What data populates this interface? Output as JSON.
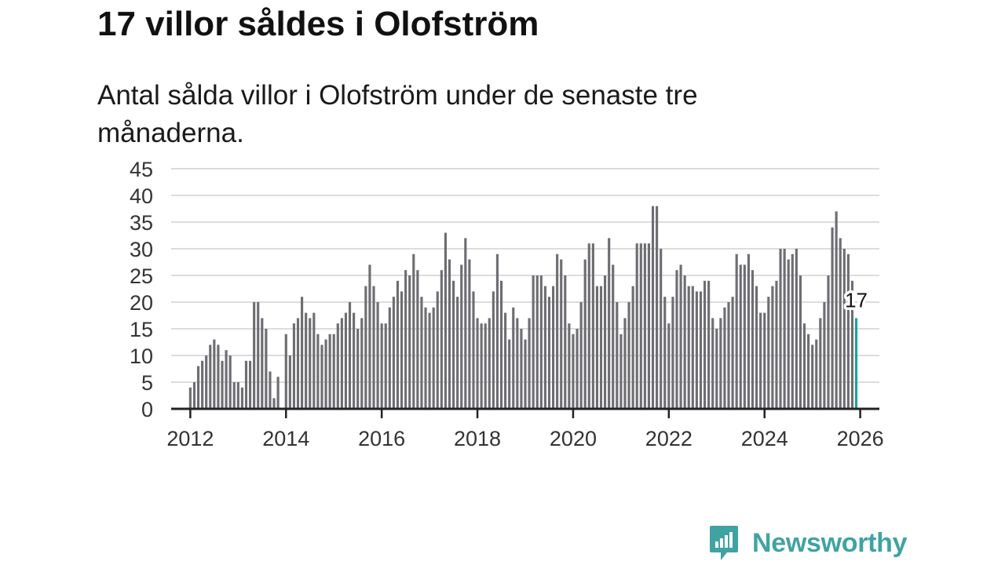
{
  "title": "17 villor såldes i Olofström",
  "subtitle": "Antal sålda villor i Olofström under de senaste tre månaderna.",
  "brand": {
    "name": "Newsworthy",
    "icon": "newsworthy-logo-icon"
  },
  "colors": {
    "bar": "#6e6d72",
    "highlight": "#1aa39b",
    "grid": "#dcdcdc",
    "axis": "#222222",
    "brand": "#3fa3a3"
  },
  "chart_data": {
    "type": "bar",
    "title": "17 villor såldes i Olofström",
    "xlabel": "",
    "ylabel": "",
    "ylim": [
      0,
      45
    ],
    "y_ticks": [
      0,
      5,
      10,
      15,
      20,
      25,
      30,
      35,
      40,
      45
    ],
    "x_range": [
      2011.6,
      2026.4
    ],
    "x_ticks": [
      2012,
      2014,
      2016,
      2018,
      2020,
      2022,
      2024,
      2026
    ],
    "x_tick_labels": [
      "2012",
      "2014",
      "2016",
      "2018",
      "2020",
      "2022",
      "2024",
      "2026"
    ],
    "first_bar_year": 2012,
    "bars_per_year": 12,
    "values": [
      4,
      5,
      8,
      9,
      10,
      12,
      13,
      12,
      9,
      11,
      10,
      5,
      5,
      4,
      9,
      9,
      20,
      20,
      17,
      15,
      7,
      2,
      6,
      0,
      14,
      10,
      16,
      17,
      21,
      18,
      17,
      18,
      14,
      12,
      13,
      14,
      14,
      16,
      17,
      18,
      20,
      18,
      15,
      17,
      23,
      27,
      23,
      20,
      16,
      16,
      19,
      21,
      24,
      22,
      26,
      25,
      29,
      26,
      21,
      19,
      18,
      19,
      22,
      26,
      33,
      28,
      24,
      21,
      27,
      32,
      28,
      22,
      17,
      16,
      16,
      17,
      22,
      29,
      24,
      18,
      13,
      19,
      17,
      15,
      13,
      17,
      25,
      25,
      25,
      23,
      21,
      23,
      29,
      28,
      25,
      16,
      14,
      15,
      20,
      28,
      31,
      31,
      23,
      23,
      25,
      32,
      27,
      20,
      14,
      17,
      20,
      23,
      31,
      31,
      31,
      31,
      38,
      38,
      30,
      21,
      16,
      21,
      26,
      27,
      25,
      23,
      23,
      22,
      22,
      24,
      24,
      17,
      15,
      17,
      19,
      20,
      21,
      29,
      27,
      27,
      29,
      26,
      23,
      18,
      18,
      21,
      23,
      24,
      30,
      30,
      28,
      29,
      30,
      25,
      16,
      14,
      12,
      13,
      17,
      20,
      25,
      34,
      37,
      32,
      30,
      29,
      24,
      17
    ],
    "highlight": {
      "index": 167,
      "value": 17,
      "label": "17"
    }
  }
}
